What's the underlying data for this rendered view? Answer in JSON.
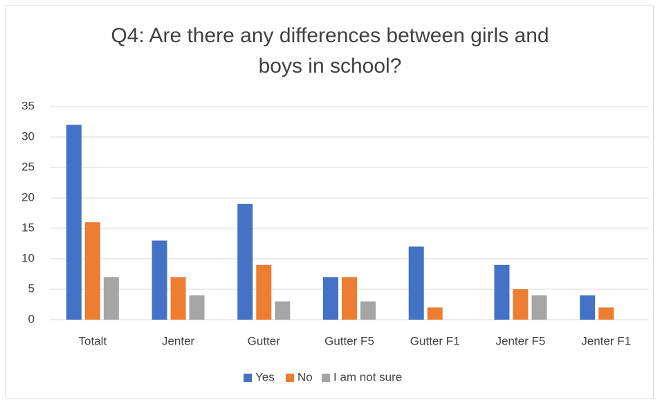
{
  "chart_data": {
    "type": "bar",
    "title": "Q4: Are there any differences between girls and boys in school?",
    "categories": [
      "Totalt",
      "Jenter",
      "Gutter",
      "Gutter F5",
      "Gutter F1",
      "Jenter F5",
      "Jenter F1"
    ],
    "series": [
      {
        "name": "Yes",
        "color": "#4472c4",
        "values": [
          32,
          13,
          19,
          7,
          12,
          9,
          4
        ]
      },
      {
        "name": "No",
        "color": "#ed7d31",
        "values": [
          16,
          7,
          9,
          7,
          2,
          5,
          2
        ]
      },
      {
        "name": "I am not sure",
        "color": "#a5a5a5",
        "values": [
          7,
          4,
          3,
          3,
          0,
          4,
          0
        ]
      }
    ],
    "ylim": [
      0,
      35
    ],
    "yticks": [
      0,
      5,
      10,
      15,
      20,
      25,
      30,
      35
    ],
    "grid": true,
    "legend": "bottom"
  }
}
